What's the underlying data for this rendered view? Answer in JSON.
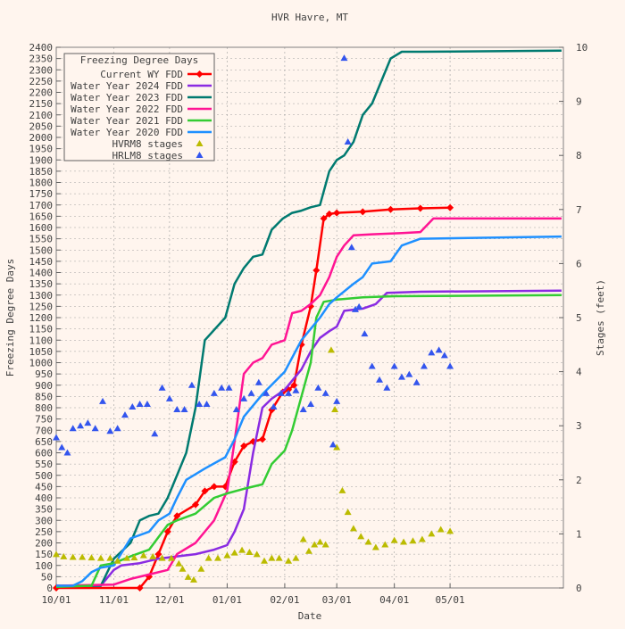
{
  "chart_data": {
    "type": "line",
    "title": "HVR Havre, MT",
    "xlabel": "Date",
    "ylabel": "Freezing Degree Days",
    "y2label": "Stages (feet)",
    "ylim": [
      0,
      2400
    ],
    "y2lim": [
      0,
      10
    ],
    "x_tick_labels": [
      "10/01",
      "11/01",
      "12/01",
      "01/01",
      "02/01",
      "03/01",
      "04/01",
      "05/01"
    ],
    "y_ticks": [
      0,
      50,
      100,
      150,
      200,
      250,
      300,
      350,
      400,
      450,
      500,
      550,
      600,
      650,
      700,
      750,
      800,
      850,
      900,
      950,
      1000,
      1050,
      1100,
      1150,
      1200,
      1250,
      1300,
      1350,
      1400,
      1450,
      1500,
      1550,
      1600,
      1650,
      1700,
      1750,
      1800,
      1850,
      1900,
      1950,
      2000,
      2050,
      2100,
      2150,
      2200,
      2250,
      2300,
      2350,
      2400
    ],
    "y2_ticks": [
      0,
      1,
      2,
      3,
      4,
      5,
      6,
      7,
      8,
      9,
      10
    ],
    "grid": true,
    "legend": {
      "title": "Freezing Degree Days",
      "position": "top-left"
    },
    "series": [
      {
        "name": "Current WY FDD",
        "color": "#ff0000",
        "style": "line-markers",
        "points": [
          [
            "10/01",
            0
          ],
          [
            "11/15",
            0
          ],
          [
            "11/20",
            50
          ],
          [
            "11/25",
            150
          ],
          [
            "11/30",
            250
          ],
          [
            "12/05",
            320
          ],
          [
            "12/15",
            370
          ],
          [
            "12/20",
            430
          ],
          [
            "12/25",
            450
          ],
          [
            "12/31",
            450
          ],
          [
            "01/05",
            560
          ],
          [
            "01/10",
            630
          ],
          [
            "01/15",
            650
          ],
          [
            "01/20",
            660
          ],
          [
            "01/25",
            790
          ],
          [
            "01/31",
            870
          ],
          [
            "02/03",
            880
          ],
          [
            "02/06",
            900
          ],
          [
            "02/10",
            1080
          ],
          [
            "02/15",
            1250
          ],
          [
            "02/18",
            1410
          ],
          [
            "02/22",
            1640
          ],
          [
            "02/25",
            1660
          ],
          [
            "03/01",
            1665
          ],
          [
            "03/15",
            1670
          ],
          [
            "03/30",
            1680
          ],
          [
            "04/15",
            1685
          ],
          [
            "05/01",
            1688
          ]
        ]
      },
      {
        "name": "Water Year 2024 FDD",
        "color": "#8a2be2",
        "style": "line",
        "points": [
          [
            "10/01",
            10
          ],
          [
            "10/25",
            10
          ],
          [
            "11/01",
            80
          ],
          [
            "11/05",
            100
          ],
          [
            "11/15",
            110
          ],
          [
            "11/25",
            130
          ],
          [
            "12/05",
            140
          ],
          [
            "12/15",
            150
          ],
          [
            "12/25",
            170
          ],
          [
            "01/01",
            190
          ],
          [
            "01/05",
            250
          ],
          [
            "01/10",
            350
          ],
          [
            "01/15",
            600
          ],
          [
            "01/20",
            800
          ],
          [
            "01/25",
            840
          ],
          [
            "02/01",
            880
          ],
          [
            "02/05",
            920
          ],
          [
            "02/10",
            970
          ],
          [
            "02/15",
            1050
          ],
          [
            "02/20",
            1110
          ],
          [
            "02/25",
            1140
          ],
          [
            "03/01",
            1160
          ],
          [
            "03/05",
            1230
          ],
          [
            "03/15",
            1240
          ],
          [
            "03/22",
            1260
          ],
          [
            "03/28",
            1310
          ],
          [
            "04/15",
            1315
          ],
          [
            "06/30",
            1320
          ]
        ]
      },
      {
        "name": "Water Year 2023 FDD",
        "color": "#007a70",
        "style": "line",
        "points": [
          [
            "10/01",
            10
          ],
          [
            "10/25",
            10
          ],
          [
            "11/01",
            130
          ],
          [
            "11/10",
            200
          ],
          [
            "11/15",
            300
          ],
          [
            "11/20",
            320
          ],
          [
            "11/25",
            330
          ],
          [
            "11/30",
            400
          ],
          [
            "12/05",
            500
          ],
          [
            "12/10",
            600
          ],
          [
            "12/15",
            800
          ],
          [
            "12/20",
            1100
          ],
          [
            "12/31",
            1200
          ],
          [
            "01/05",
            1350
          ],
          [
            "01/10",
            1420
          ],
          [
            "01/15",
            1470
          ],
          [
            "01/20",
            1480
          ],
          [
            "01/25",
            1590
          ],
          [
            "01/31",
            1640
          ],
          [
            "02/05",
            1665
          ],
          [
            "02/10",
            1675
          ],
          [
            "02/15",
            1690
          ],
          [
            "02/20",
            1700
          ],
          [
            "02/25",
            1850
          ],
          [
            "03/01",
            1900
          ],
          [
            "03/05",
            1920
          ],
          [
            "03/10",
            1980
          ],
          [
            "03/15",
            2100
          ],
          [
            "03/20",
            2150
          ],
          [
            "03/25",
            2250
          ],
          [
            "03/30",
            2350
          ],
          [
            "04/05",
            2380
          ],
          [
            "04/15",
            2380
          ],
          [
            "06/30",
            2385
          ]
        ]
      },
      {
        "name": "Water Year 2022 FDD",
        "color": "#ff1493",
        "style": "line",
        "points": [
          [
            "10/01",
            10
          ],
          [
            "11/01",
            15
          ],
          [
            "11/10",
            40
          ],
          [
            "11/20",
            60
          ],
          [
            "11/30",
            80
          ],
          [
            "12/05",
            150
          ],
          [
            "12/15",
            200
          ],
          [
            "12/25",
            300
          ],
          [
            "01/01",
            430
          ],
          [
            "01/05",
            650
          ],
          [
            "01/10",
            950
          ],
          [
            "01/15",
            1000
          ],
          [
            "01/20",
            1020
          ],
          [
            "01/25",
            1080
          ],
          [
            "02/01",
            1100
          ],
          [
            "02/05",
            1220
          ],
          [
            "02/10",
            1230
          ],
          [
            "02/15",
            1260
          ],
          [
            "02/20",
            1300
          ],
          [
            "02/25",
            1380
          ],
          [
            "03/01",
            1470
          ],
          [
            "03/05",
            1520
          ],
          [
            "03/10",
            1565
          ],
          [
            "03/20",
            1570
          ],
          [
            "04/05",
            1575
          ],
          [
            "04/15",
            1580
          ],
          [
            "04/22",
            1640
          ],
          [
            "06/30",
            1640
          ]
        ]
      },
      {
        "name": "Water Year 2021 FDD",
        "color": "#33cc33",
        "style": "line",
        "points": [
          [
            "10/01",
            5
          ],
          [
            "10/20",
            10
          ],
          [
            "10/25",
            100
          ],
          [
            "11/01",
            110
          ],
          [
            "11/10",
            140
          ],
          [
            "11/20",
            170
          ],
          [
            "11/30",
            280
          ],
          [
            "12/05",
            300
          ],
          [
            "12/15",
            330
          ],
          [
            "12/25",
            400
          ],
          [
            "01/01",
            420
          ],
          [
            "01/10",
            440
          ],
          [
            "01/20",
            460
          ],
          [
            "01/25",
            550
          ],
          [
            "02/01",
            610
          ],
          [
            "02/05",
            700
          ],
          [
            "02/10",
            850
          ],
          [
            "02/15",
            1000
          ],
          [
            "02/18",
            1200
          ],
          [
            "02/22",
            1270
          ],
          [
            "03/01",
            1280
          ],
          [
            "03/15",
            1290
          ],
          [
            "04/01",
            1295
          ],
          [
            "06/30",
            1300
          ]
        ]
      },
      {
        "name": "Water Year 2020 FDD",
        "color": "#1e90ff",
        "style": "line",
        "points": [
          [
            "10/01",
            10
          ],
          [
            "10/10",
            10
          ],
          [
            "10/15",
            30
          ],
          [
            "10/20",
            70
          ],
          [
            "10/25",
            90
          ],
          [
            "11/01",
            100
          ],
          [
            "11/10",
            220
          ],
          [
            "11/20",
            250
          ],
          [
            "11/25",
            300
          ],
          [
            "12/01",
            330
          ],
          [
            "12/05",
            400
          ],
          [
            "12/10",
            480
          ],
          [
            "12/20",
            530
          ],
          [
            "12/31",
            580
          ],
          [
            "01/05",
            660
          ],
          [
            "01/10",
            760
          ],
          [
            "01/20",
            860
          ],
          [
            "02/01",
            960
          ],
          [
            "02/10",
            1100
          ],
          [
            "02/15",
            1150
          ],
          [
            "02/20",
            1200
          ],
          [
            "02/25",
            1260
          ],
          [
            "03/01",
            1290
          ],
          [
            "03/10",
            1350
          ],
          [
            "03/15",
            1380
          ],
          [
            "03/20",
            1440
          ],
          [
            "03/30",
            1450
          ],
          [
            "04/05",
            1520
          ],
          [
            "04/15",
            1550
          ],
          [
            "06/30",
            1560
          ]
        ]
      },
      {
        "name": "HVRM8 stages",
        "color": "#bbbb00",
        "style": "markers",
        "points": [
          [
            "10/01",
            0.62
          ],
          [
            "10/05",
            0.58
          ],
          [
            "10/10",
            0.57
          ],
          [
            "10/15",
            0.57
          ],
          [
            "10/20",
            0.56
          ],
          [
            "10/25",
            0.55
          ],
          [
            "10/30",
            0.55
          ],
          [
            "11/03",
            0.5
          ],
          [
            "11/08",
            0.55
          ],
          [
            "11/12",
            0.56
          ],
          [
            "11/17",
            0.6
          ],
          [
            "11/22",
            0.58
          ],
          [
            "11/27",
            0.55
          ],
          [
            "12/02",
            0.55
          ],
          [
            "12/06",
            0.45
          ],
          [
            "12/08",
            0.35
          ],
          [
            "12/11",
            0.2
          ],
          [
            "12/14",
            0.15
          ],
          [
            "12/18",
            0.35
          ],
          [
            "12/22",
            0.55
          ],
          [
            "12/27",
            0.55
          ],
          [
            "01/01",
            0.6
          ],
          [
            "01/05",
            0.65
          ],
          [
            "01/09",
            0.7
          ],
          [
            "01/13",
            0.66
          ],
          [
            "01/17",
            0.62
          ],
          [
            "01/21",
            0.5
          ],
          [
            "01/25",
            0.55
          ],
          [
            "01/29",
            0.55
          ],
          [
            "02/03",
            0.5
          ],
          [
            "02/07",
            0.55
          ],
          [
            "02/11",
            0.9
          ],
          [
            "02/14",
            0.68
          ],
          [
            "02/17",
            0.8
          ],
          [
            "02/20",
            0.85
          ],
          [
            "02/23",
            0.8
          ],
          [
            "02/26",
            4.4
          ],
          [
            "02/28",
            3.3
          ],
          [
            "03/01",
            2.6
          ],
          [
            "03/04",
            1.8
          ],
          [
            "03/07",
            1.4
          ],
          [
            "03/10",
            1.1
          ],
          [
            "03/14",
            0.95
          ],
          [
            "03/18",
            0.85
          ],
          [
            "03/22",
            0.75
          ],
          [
            "03/27",
            0.8
          ],
          [
            "04/01",
            0.88
          ],
          [
            "04/06",
            0.85
          ],
          [
            "04/11",
            0.87
          ],
          [
            "04/16",
            0.9
          ],
          [
            "04/21",
            1.0
          ],
          [
            "04/26",
            1.08
          ],
          [
            "05/01",
            1.05
          ]
        ]
      },
      {
        "name": "HRLM8 stages",
        "color": "#3355ee",
        "style": "markers",
        "points": [
          [
            "10/01",
            2.78
          ],
          [
            "10/04",
            2.6
          ],
          [
            "10/07",
            2.5
          ],
          [
            "10/10",
            2.95
          ],
          [
            "10/14",
            3.0
          ],
          [
            "10/18",
            3.05
          ],
          [
            "10/22",
            2.95
          ],
          [
            "10/26",
            3.45
          ],
          [
            "10/30",
            2.9
          ],
          [
            "11/03",
            2.95
          ],
          [
            "11/07",
            3.2
          ],
          [
            "11/11",
            3.35
          ],
          [
            "11/15",
            3.4
          ],
          [
            "11/19",
            3.4
          ],
          [
            "11/23",
            2.85
          ],
          [
            "11/27",
            3.7
          ],
          [
            "12/01",
            3.5
          ],
          [
            "12/05",
            3.3
          ],
          [
            "12/09",
            3.3
          ],
          [
            "12/13",
            3.75
          ],
          [
            "12/17",
            3.4
          ],
          [
            "12/21",
            3.4
          ],
          [
            "12/25",
            3.6
          ],
          [
            "12/29",
            3.7
          ],
          [
            "01/02",
            3.7
          ],
          [
            "01/06",
            3.3
          ],
          [
            "01/10",
            3.5
          ],
          [
            "01/14",
            3.6
          ],
          [
            "01/18",
            3.8
          ],
          [
            "01/22",
            3.6
          ],
          [
            "01/26",
            3.35
          ],
          [
            "01/30",
            3.6
          ],
          [
            "02/03",
            3.6
          ],
          [
            "02/07",
            3.65
          ],
          [
            "02/11",
            3.3
          ],
          [
            "02/15",
            3.4
          ],
          [
            "02/19",
            3.7
          ],
          [
            "02/23",
            3.6
          ],
          [
            "02/27",
            2.65
          ],
          [
            "03/01",
            3.45
          ],
          [
            "03/05",
            9.8
          ],
          [
            "03/07",
            8.25
          ],
          [
            "03/09",
            6.3
          ],
          [
            "03/11",
            5.15
          ],
          [
            "03/13",
            5.2
          ],
          [
            "03/16",
            4.7
          ],
          [
            "03/20",
            4.1
          ],
          [
            "03/24",
            3.85
          ],
          [
            "03/28",
            3.7
          ],
          [
            "04/01",
            4.1
          ],
          [
            "04/05",
            3.9
          ],
          [
            "04/09",
            3.95
          ],
          [
            "04/13",
            3.8
          ],
          [
            "04/17",
            4.1
          ],
          [
            "04/21",
            4.35
          ],
          [
            "04/25",
            4.4
          ],
          [
            "04/28",
            4.3
          ],
          [
            "05/01",
            4.1
          ]
        ]
      }
    ]
  }
}
